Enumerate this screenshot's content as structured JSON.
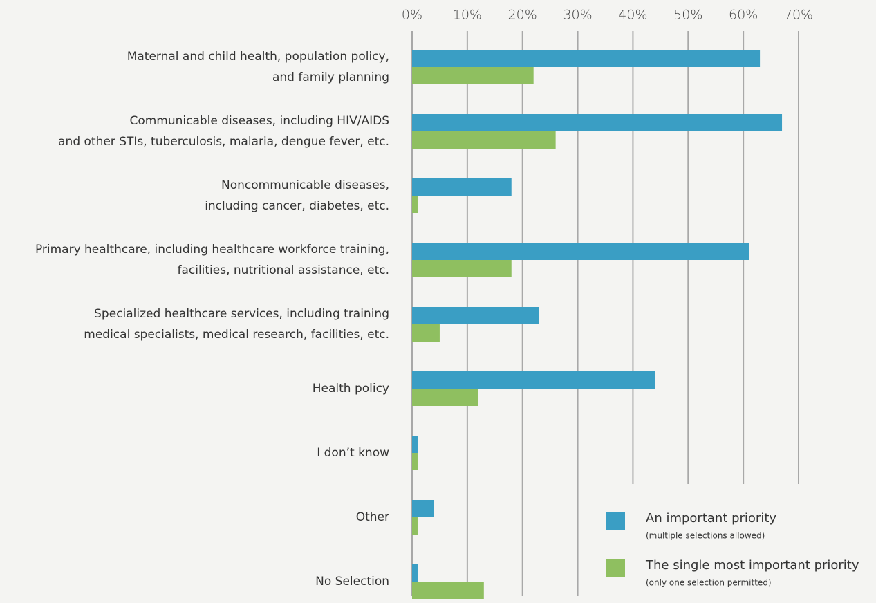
{
  "chart_data": {
    "type": "barh",
    "categories": [
      [
        "Maternal and child health, population policy,",
        "and family planning"
      ],
      [
        "Communicable diseases, including HIV/AIDS",
        "and other STIs, tuberculosis, malaria, dengue fever, etc."
      ],
      [
        "Noncommunicable diseases,",
        "including cancer, diabetes, etc."
      ],
      [
        "Primary healthcare, including healthcare workforce training,",
        "facilities, nutritional assistance, etc."
      ],
      [
        "Specialized healthcare services, including training",
        "medical specialists, medical research, facilities, etc."
      ],
      [
        "Health policy"
      ],
      [
        "I don’t know"
      ],
      [
        "Other"
      ],
      [
        "No Selection"
      ]
    ],
    "series": [
      {
        "name": "An important priority",
        "note": "(multiple selections allowed)",
        "color": "#3a9ec4",
        "values": [
          63,
          67,
          18,
          61,
          23,
          44,
          1,
          4,
          1
        ]
      },
      {
        "name": "The  single most important priority",
        "note": "(only one selection permitted)",
        "color": "#8fbf60",
        "values": [
          22,
          26,
          1,
          18,
          5,
          12,
          1,
          1,
          13
        ]
      }
    ],
    "xlim": [
      0,
      70
    ],
    "xticks": [
      {
        "value": 0,
        "label": "0%"
      },
      {
        "value": 10,
        "label": "10%"
      },
      {
        "value": 20,
        "label": "20%"
      },
      {
        "value": 30,
        "label": "30%"
      },
      {
        "value": 40,
        "label": "40%"
      },
      {
        "value": 50,
        "label": "50%"
      },
      {
        "value": 60,
        "label": "60%"
      },
      {
        "value": 70,
        "label": "70%"
      }
    ],
    "grid": true,
    "legend": "lower right"
  }
}
